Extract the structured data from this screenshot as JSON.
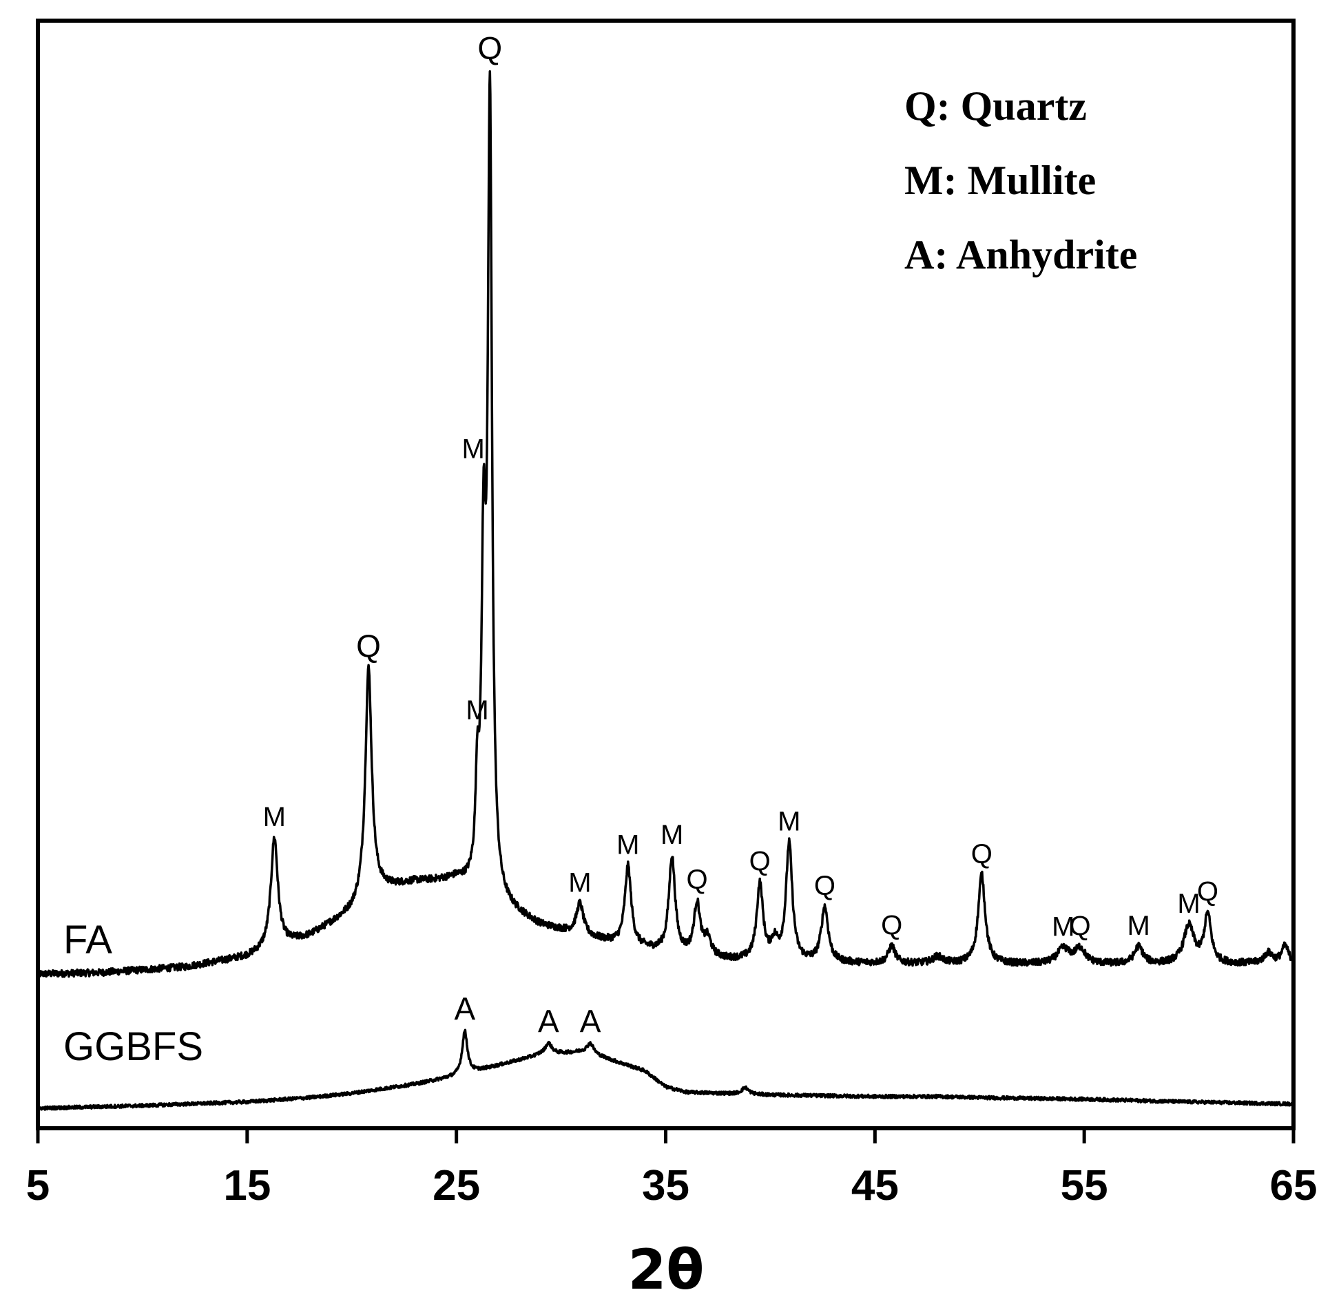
{
  "chart_data": {
    "type": "line",
    "xlabel": "2θ",
    "ylabel": "",
    "xlim": [
      5,
      65
    ],
    "x_ticks": [
      "5",
      "15",
      "25",
      "35",
      "45",
      "55",
      "65"
    ],
    "grid": false,
    "legend": {
      "placement": "top-right",
      "entries": [
        "Q: Quartz",
        "M: Mullite",
        "A: Anhydrite"
      ]
    },
    "series": [
      {
        "name": "FA",
        "baseline": 10,
        "background": [
          [
            5,
            0
          ],
          [
            8,
            2
          ],
          [
            12,
            10
          ],
          [
            15,
            25
          ],
          [
            18,
            55
          ],
          [
            20,
            90
          ],
          [
            21,
            120
          ],
          [
            23,
            133
          ],
          [
            25,
            135
          ],
          [
            27,
            100
          ],
          [
            29,
            70
          ],
          [
            32,
            48
          ],
          [
            35,
            30
          ],
          [
            38,
            20
          ],
          [
            42,
            16
          ],
          [
            45,
            15
          ],
          [
            50,
            14
          ],
          [
            55,
            14
          ],
          [
            60,
            14
          ],
          [
            65,
            15
          ]
        ],
        "peaks": [
          {
            "x": 16.3,
            "height": 160,
            "width": 0.2,
            "label": "M"
          },
          {
            "x": 20.8,
            "height": 330,
            "width": 0.18,
            "label": "Q"
          },
          {
            "x": 26.0,
            "height": 130,
            "width": 0.1,
            "label": "M"
          },
          {
            "x": 26.3,
            "height": 450,
            "width": 0.12,
            "label": "M"
          },
          {
            "x": 26.6,
            "height": 1140,
            "width": 0.12,
            "label": "Q"
          },
          {
            "x": 30.9,
            "height": 45,
            "width": 0.2,
            "label": "M"
          },
          {
            "x": 33.2,
            "height": 115,
            "width": 0.18,
            "label": "M"
          },
          {
            "x": 35.3,
            "height": 140,
            "width": 0.18,
            "label": "M"
          },
          {
            "x": 36.5,
            "height": 75,
            "width": 0.18,
            "label": "Q"
          },
          {
            "x": 37.0,
            "height": 25,
            "width": 0.2,
            "label": ""
          },
          {
            "x": 39.5,
            "height": 110,
            "width": 0.18,
            "label": "Q"
          },
          {
            "x": 40.2,
            "height": 25,
            "width": 0.2,
            "label": ""
          },
          {
            "x": 40.9,
            "height": 170,
            "width": 0.18,
            "label": "M"
          },
          {
            "x": 42.6,
            "height": 80,
            "width": 0.2,
            "label": "Q"
          },
          {
            "x": 45.8,
            "height": 25,
            "width": 0.2,
            "label": "Q"
          },
          {
            "x": 48.0,
            "height": 10,
            "width": 0.3,
            "label": ""
          },
          {
            "x": 50.1,
            "height": 130,
            "width": 0.2,
            "label": "Q"
          },
          {
            "x": 54.0,
            "height": 22,
            "width": 0.35,
            "label": "M"
          },
          {
            "x": 54.8,
            "height": 22,
            "width": 0.3,
            "label": "Q"
          },
          {
            "x": 57.6,
            "height": 25,
            "width": 0.25,
            "label": "M"
          },
          {
            "x": 60.0,
            "height": 55,
            "width": 0.3,
            "label": "M"
          },
          {
            "x": 60.9,
            "height": 70,
            "width": 0.2,
            "label": "Q"
          },
          {
            "x": 63.8,
            "height": 15,
            "width": 0.25,
            "label": ""
          },
          {
            "x": 64.6,
            "height": 25,
            "width": 0.2,
            "label": ""
          }
        ]
      },
      {
        "name": "GGBFS",
        "baseline": 0,
        "background": [
          [
            5,
            0
          ],
          [
            10,
            5
          ],
          [
            15,
            12
          ],
          [
            18,
            20
          ],
          [
            20,
            28
          ],
          [
            23,
            45
          ],
          [
            25,
            60
          ],
          [
            27,
            80
          ],
          [
            29,
            100
          ],
          [
            31,
            105
          ],
          [
            32,
            95
          ],
          [
            34,
            70
          ],
          [
            35,
            40
          ],
          [
            36,
            30
          ],
          [
            40,
            25
          ],
          [
            45,
            22
          ],
          [
            48,
            22
          ],
          [
            50,
            20
          ],
          [
            55,
            17
          ],
          [
            60,
            12
          ],
          [
            65,
            8
          ]
        ],
        "peaks": [
          {
            "x": 25.4,
            "height": 80,
            "width": 0.15,
            "label": "A"
          },
          {
            "x": 29.4,
            "height": 20,
            "width": 0.2,
            "label": "A"
          },
          {
            "x": 31.4,
            "height": 20,
            "width": 0.2,
            "label": "A"
          },
          {
            "x": 38.8,
            "height": 12,
            "width": 0.2,
            "label": ""
          }
        ]
      }
    ]
  }
}
